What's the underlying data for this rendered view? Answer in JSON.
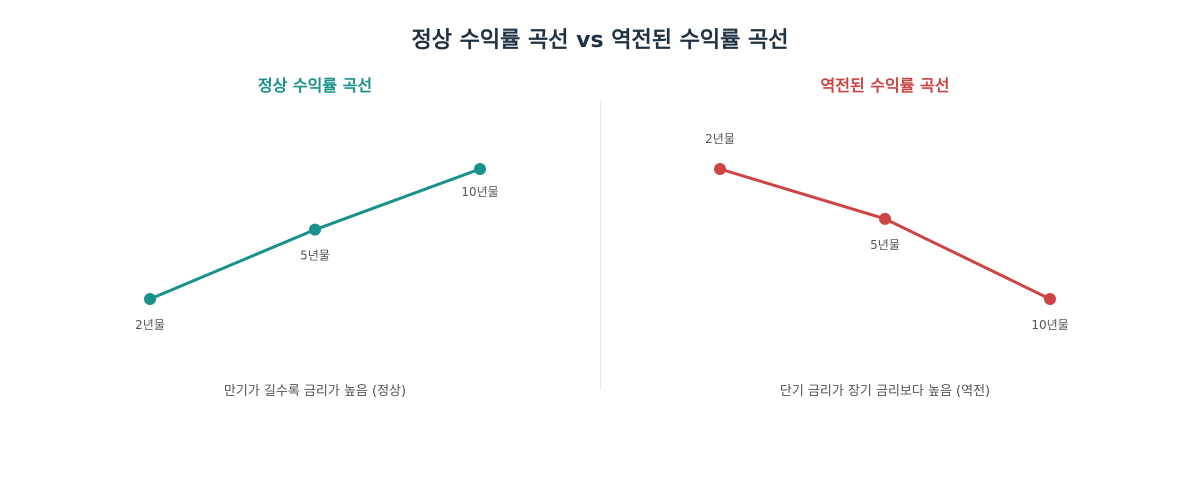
{
  "title": "정상 수익률 곡선 vs 역전된 수익률 곡선",
  "chart_data": [
    {
      "type": "line",
      "title": "정상 수익률 곡선",
      "caption": "만기가 길수록 금리가 높음 (정상)",
      "color": "#17918a",
      "categories": [
        "2년물",
        "5년물",
        "10년물"
      ],
      "values": [
        1.0,
        2.6,
        4.0
      ],
      "ylim": [
        0,
        5
      ],
      "grid": false,
      "label_position": "below"
    },
    {
      "type": "line",
      "title": "역전된 수익률 곡선",
      "caption": "단기 금리가 장기 금리보다 높음 (역전)",
      "color": "#cc4444",
      "categories": [
        "2년물",
        "5년물",
        "10년물"
      ],
      "values": [
        4.0,
        2.85,
        1.0
      ],
      "ylim": [
        0,
        5
      ],
      "grid": false,
      "label_position": "mixed"
    }
  ]
}
